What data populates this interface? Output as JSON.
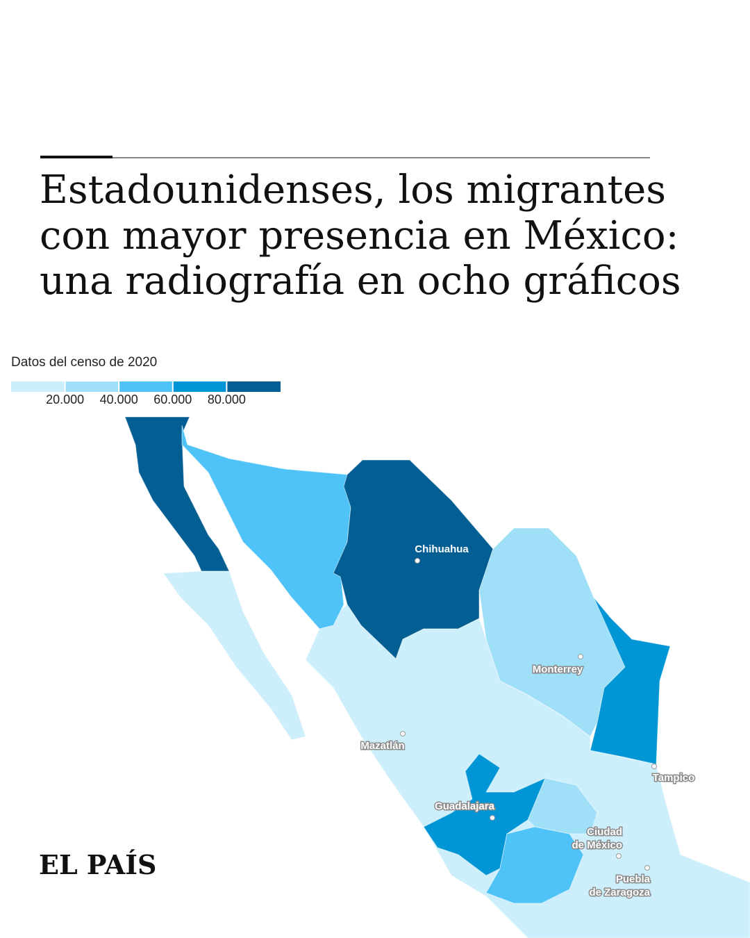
{
  "header": {
    "title_lines": [
      "Estadounidenses, los migrantes",
      "con mayor presencia en México:",
      "una radiografía en ocho gráficos"
    ]
  },
  "legend": {
    "title": "Datos del censo de 2020",
    "colors": [
      "#cdeefb",
      "#9fe0f8",
      "#4fc3f7",
      "#0096d6",
      "#035e93"
    ],
    "ticks": [
      {
        "value": 20000,
        "label": "20.000"
      },
      {
        "value": 40000,
        "label": "40.000"
      },
      {
        "value": 60000,
        "label": "60.000"
      },
      {
        "value": 80000,
        "label": "80.000"
      }
    ]
  },
  "map": {
    "cities": [
      {
        "lines": [
          "Chihuahua"
        ]
      },
      {
        "lines": [
          "Monterrey"
        ]
      },
      {
        "lines": [
          "Mazatlán"
        ]
      },
      {
        "lines": [
          "Tampico"
        ]
      },
      {
        "lines": [
          "Guadalajara"
        ]
      },
      {
        "lines": [
          "Ciudad",
          "de México"
        ]
      },
      {
        "lines": [
          "Puebla",
          "de Zaragoza"
        ]
      }
    ]
  },
  "brand": "EL PAÍS"
}
